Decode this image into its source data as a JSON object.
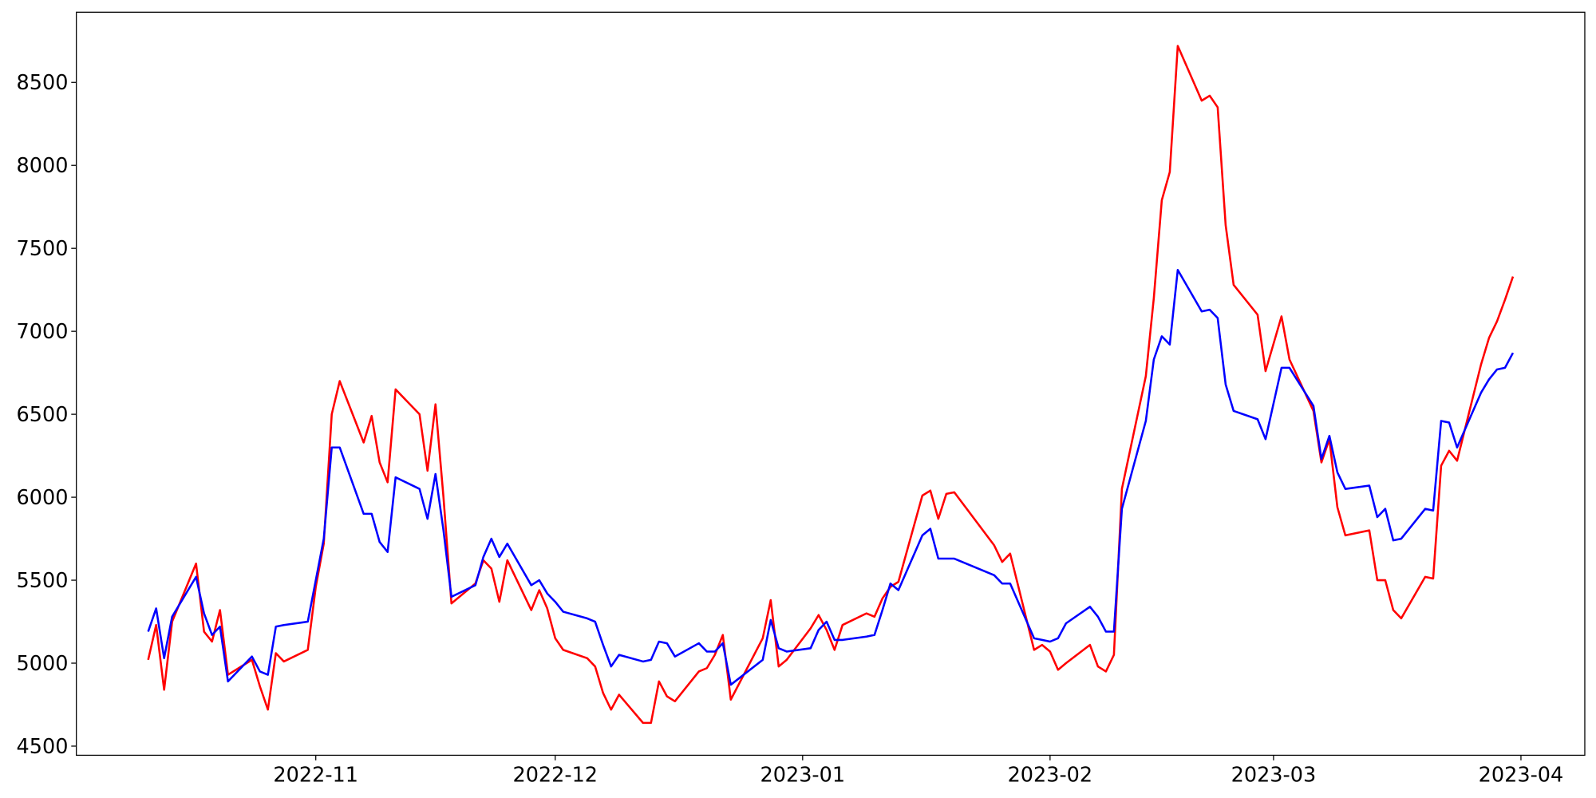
{
  "chart_data": {
    "type": "line",
    "x": [
      "2022-10-11",
      "2022-10-12",
      "2022-10-13",
      "2022-10-14",
      "2022-10-17",
      "2022-10-18",
      "2022-10-19",
      "2022-10-20",
      "2022-10-21",
      "2022-10-24",
      "2022-10-25",
      "2022-10-26",
      "2022-10-27",
      "2022-10-28",
      "2022-10-31",
      "2022-11-01",
      "2022-11-02",
      "2022-11-03",
      "2022-11-04",
      "2022-11-07",
      "2022-11-08",
      "2022-11-09",
      "2022-11-10",
      "2022-11-11",
      "2022-11-14",
      "2022-11-15",
      "2022-11-16",
      "2022-11-17",
      "2022-11-18",
      "2022-11-21",
      "2022-11-22",
      "2022-11-23",
      "2022-11-24",
      "2022-11-25",
      "2022-11-28",
      "2022-11-29",
      "2022-11-30",
      "2022-12-01",
      "2022-12-02",
      "2022-12-05",
      "2022-12-06",
      "2022-12-07",
      "2022-12-08",
      "2022-12-09",
      "2022-12-12",
      "2022-12-13",
      "2022-12-14",
      "2022-12-15",
      "2022-12-16",
      "2022-12-19",
      "2022-12-20",
      "2022-12-21",
      "2022-12-22",
      "2022-12-23",
      "2022-12-27",
      "2022-12-28",
      "2022-12-29",
      "2022-12-30",
      "2023-01-02",
      "2023-01-03",
      "2023-01-04",
      "2023-01-05",
      "2023-01-06",
      "2023-01-09",
      "2023-01-10",
      "2023-01-11",
      "2023-01-12",
      "2023-01-13",
      "2023-01-16",
      "2023-01-17",
      "2023-01-18",
      "2023-01-19",
      "2023-01-20",
      "2023-01-25",
      "2023-01-26",
      "2023-01-27",
      "2023-01-30",
      "2023-01-31",
      "2023-02-01",
      "2023-02-02",
      "2023-02-03",
      "2023-02-06",
      "2023-02-07",
      "2023-02-08",
      "2023-02-09",
      "2023-02-10",
      "2023-02-13",
      "2023-02-14",
      "2023-02-15",
      "2023-02-16",
      "2023-02-17",
      "2023-02-20",
      "2023-02-21",
      "2023-02-22",
      "2023-02-23",
      "2023-02-24",
      "2023-02-27",
      "2023-02-28",
      "2023-03-02",
      "2023-03-03",
      "2023-03-06",
      "2023-03-07",
      "2023-03-08",
      "2023-03-09",
      "2023-03-10",
      "2023-03-13",
      "2023-03-14",
      "2023-03-15",
      "2023-03-16",
      "2023-03-17",
      "2023-03-20",
      "2023-03-21",
      "2023-03-22",
      "2023-03-23",
      "2023-03-24",
      "2023-03-27",
      "2023-03-28",
      "2023-03-29",
      "2023-03-30",
      "2023-03-31"
    ],
    "series": [
      {
        "color": "#ff0000",
        "values": [
          5020,
          5230,
          4840,
          5250,
          5600,
          5190,
          5130,
          5320,
          4930,
          5020,
          4860,
          4720,
          5060,
          5010,
          5080,
          5460,
          5720,
          6500,
          6700,
          6330,
          6490,
          6210,
          6090,
          6650,
          6500,
          6160,
          6560,
          6000,
          5360,
          5480,
          5620,
          5570,
          5370,
          5620,
          5320,
          5440,
          5330,
          5150,
          5080,
          5030,
          4980,
          4820,
          4720,
          4810,
          4640,
          4640,
          4890,
          4800,
          4770,
          4950,
          4970,
          5050,
          5170,
          4780,
          5150,
          5380,
          4980,
          5020,
          5210,
          5290,
          5200,
          5080,
          5230,
          5300,
          5280,
          5390,
          5460,
          5490,
          6010,
          6040,
          5870,
          6020,
          6030,
          5710,
          5610,
          5660,
          5080,
          5110,
          5070,
          4960,
          5000,
          5110,
          4980,
          4950,
          5050,
          6050,
          6730,
          7200,
          7790,
          7960,
          8720,
          8390,
          8420,
          8350,
          7640,
          7280,
          7100,
          6760,
          7090,
          6830,
          6520,
          6210,
          6350,
          5940,
          5770,
          5800,
          5500,
          5500,
          5320,
          5270,
          5520,
          5510,
          6190,
          6280,
          6220,
          6800,
          6960,
          7060,
          7190,
          7330
        ]
      },
      {
        "color": "#0000ff",
        "values": [
          5190,
          5330,
          5030,
          5280,
          5520,
          5300,
          5170,
          5220,
          4890,
          5040,
          4950,
          4930,
          5220,
          5230,
          5250,
          5500,
          5750,
          6300,
          6300,
          5900,
          5900,
          5730,
          5670,
          6120,
          6050,
          5870,
          6140,
          5800,
          5400,
          5470,
          5640,
          5750,
          5640,
          5720,
          5470,
          5500,
          5420,
          5370,
          5310,
          5270,
          5250,
          5110,
          4980,
          5050,
          5010,
          5020,
          5130,
          5120,
          5040,
          5120,
          5070,
          5070,
          5120,
          4870,
          5020,
          5260,
          5090,
          5070,
          5090,
          5200,
          5250,
          5140,
          5140,
          5160,
          5170,
          5320,
          5480,
          5440,
          5770,
          5810,
          5630,
          5630,
          5630,
          5530,
          5480,
          5480,
          5150,
          5140,
          5130,
          5150,
          5240,
          5340,
          5280,
          5190,
          5190,
          5930,
          6460,
          6830,
          6970,
          6920,
          7370,
          7120,
          7130,
          7080,
          6680,
          6520,
          6470,
          6350,
          6780,
          6780,
          6550,
          6230,
          6370,
          6150,
          6050,
          6070,
          5880,
          5930,
          5740,
          5750,
          5930,
          5920,
          6460,
          6450,
          6300,
          6630,
          6710,
          6770,
          6780,
          6870
        ]
      }
    ],
    "xlim": [
      "2022-10-02",
      "2023-04-09"
    ],
    "xticks": [
      {
        "value": "2022-11-01",
        "label": "2022-11"
      },
      {
        "value": "2022-12-01",
        "label": "2022-12"
      },
      {
        "value": "2023-01-01",
        "label": "2023-01"
      },
      {
        "value": "2023-02-01",
        "label": "2023-02"
      },
      {
        "value": "2023-03-01",
        "label": "2023-03"
      },
      {
        "value": "2023-04-01",
        "label": "2023-04"
      }
    ],
    "ylim": [
      4445,
      8923
    ],
    "yticks": [
      4500,
      5000,
      5500,
      6000,
      6500,
      7000,
      7500,
      8000,
      8500
    ],
    "grid": false
  }
}
